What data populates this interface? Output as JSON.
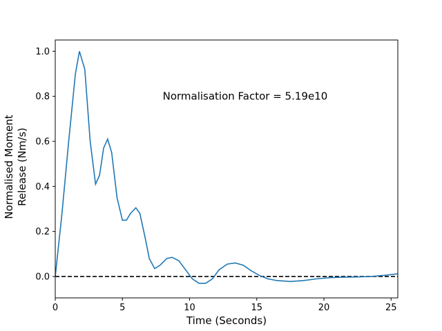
{
  "chart_data": {
    "type": "line",
    "xlabel": "Time (Seconds)",
    "ylabel": [
      "Normalised Moment",
      "Release (Nm/s)"
    ],
    "annotation": {
      "text": "Normalisation Factor = 5.19e10",
      "x": 8,
      "y": 0.8
    },
    "hlines": [
      0
    ],
    "xlim": [
      0,
      25.5
    ],
    "ylim": [
      -0.095,
      1.05
    ],
    "xticks": [
      0,
      5,
      10,
      15,
      20,
      25
    ],
    "yticks": [
      {
        "value": 0,
        "label": "0.0"
      },
      {
        "value": 0.2,
        "label": "0.2"
      },
      {
        "value": 0.4,
        "label": "0.4"
      },
      {
        "value": 0.6,
        "label": "0.6"
      },
      {
        "value": 0.8,
        "label": "0.8"
      },
      {
        "value": 1,
        "label": "1.0"
      }
    ],
    "x": [
      0,
      0.5,
      1.0,
      1.5,
      1.8,
      2.2,
      2.6,
      3.0,
      3.3,
      3.6,
      3.9,
      4.2,
      4.6,
      5.0,
      5.3,
      5.6,
      6.0,
      6.3,
      6.7,
      7.0,
      7.4,
      7.8,
      8.3,
      8.7,
      9.2,
      9.7,
      10.2,
      10.7,
      11.2,
      11.7,
      12.2,
      12.8,
      13.4,
      14.0,
      14.6,
      15.2,
      15.8,
      16.5,
      17.5,
      18.5,
      19.5,
      20.5,
      21.5,
      22.5,
      23.5,
      24.5,
      25.5
    ],
    "series": [
      {
        "color": "#1f77b4",
        "values": [
          0,
          0.28,
          0.6,
          0.9,
          1.0,
          0.92,
          0.6,
          0.41,
          0.45,
          0.57,
          0.61,
          0.55,
          0.35,
          0.25,
          0.25,
          0.28,
          0.305,
          0.28,
          0.17,
          0.08,
          0.035,
          0.05,
          0.08,
          0.085,
          0.07,
          0.03,
          -0.01,
          -0.03,
          -0.03,
          -0.01,
          0.03,
          0.055,
          0.06,
          0.05,
          0.025,
          0.005,
          -0.01,
          -0.018,
          -0.022,
          -0.018,
          -0.01,
          -0.005,
          -0.003,
          -0.002,
          0,
          0.005,
          0.012
        ]
      }
    ]
  }
}
